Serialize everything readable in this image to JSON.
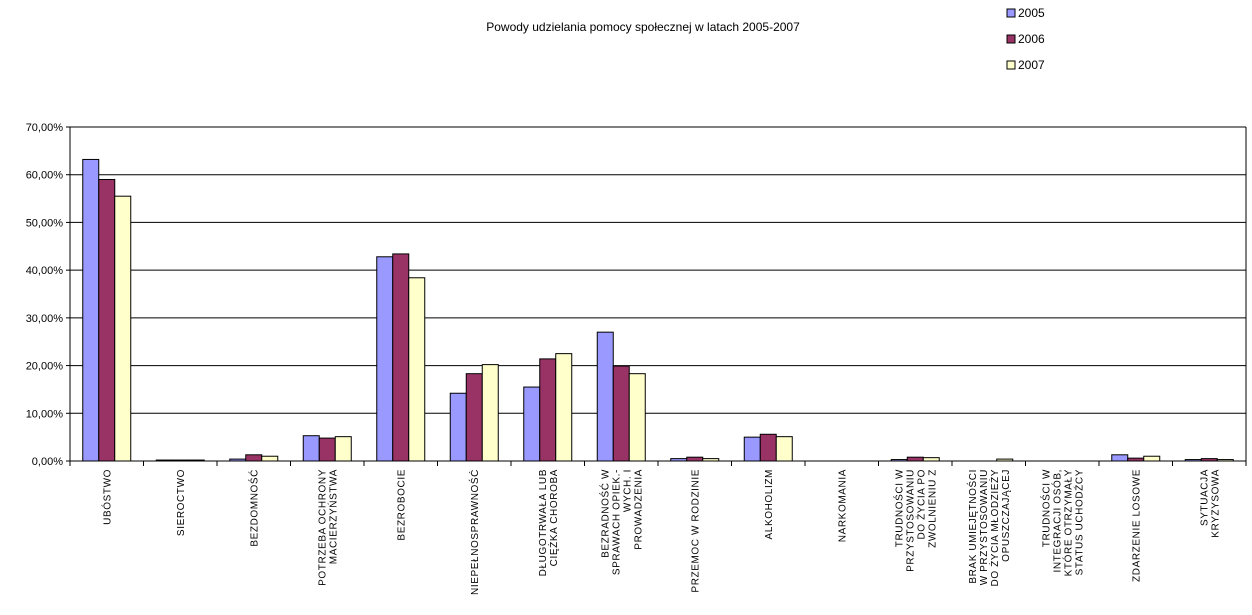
{
  "chart_data": {
    "type": "bar",
    "title": "Powody udzielania pomocy społecznej w latach 2005-2007",
    "xlabel": "",
    "ylabel": "",
    "ylim": [
      0,
      70
    ],
    "yticks": [
      "0,00%",
      "10,00%",
      "20,00%",
      "30,00%",
      "40,00%",
      "50,00%",
      "60,00%",
      "70,00%"
    ],
    "grid": true,
    "legend_position": "top-right",
    "categories": [
      [
        "UBÓSTWO"
      ],
      [
        "SIEROCTWO"
      ],
      [
        "BEZDOMNOŚĆ"
      ],
      [
        "POTRZEBA OCHRONY",
        "MACIERZYŃSTWA"
      ],
      [
        "BEZROBOCIE"
      ],
      [
        "NIEPEŁNOSPRAWNOŚĆ"
      ],
      [
        "DŁUGOTRWAŁA LUB",
        "CIĘŻKA CHOROBA"
      ],
      [
        "BEZRADNOŚĆ W",
        "SPRAWACH OPIEK.-",
        "WYCH. I",
        "PROWADZENIA"
      ],
      [
        "PRZEMOC W RODZINIE"
      ],
      [
        "ALKOHOLIZM"
      ],
      [
        "NARKOMANIA"
      ],
      [
        "TRUDNOŚCI W",
        "PRZYSTOSOWANIU",
        "DO ŻYCIA PO",
        "ZWOLNIENIU Z"
      ],
      [
        "BRAK UMIEJĘTNOŚCI",
        "W PRZYSTOSOWANIU",
        "DO ŻYCIA MŁODZIEŻY",
        "OPUSZCZAJĄCEJ"
      ],
      [
        "TRUDNOŚCI W",
        "INTEGRACJI OSÓB,",
        "KTÓRE OTRZYMAŁY",
        "STATUS UCHODŹCY"
      ],
      [
        "ZDARZENIE LOSOWE"
      ],
      [
        "SYTUACJA",
        "KRYZYSOWA"
      ]
    ],
    "series": [
      {
        "name": "2005",
        "color": "#9999ff",
        "values": [
          63.2,
          0.2,
          0.4,
          5.3,
          42.8,
          14.2,
          15.5,
          27.0,
          0.5,
          5.0,
          0.0,
          0.3,
          0.0,
          0.0,
          1.3,
          0.3
        ]
      },
      {
        "name": "2006",
        "color": "#993366",
        "values": [
          59.0,
          0.2,
          1.3,
          4.8,
          43.4,
          18.3,
          21.4,
          19.9,
          0.8,
          5.6,
          0.0,
          0.8,
          0.0,
          0.0,
          0.6,
          0.5
        ]
      },
      {
        "name": "2007",
        "color": "#ffffcc",
        "values": [
          55.5,
          0.2,
          1.0,
          5.1,
          38.4,
          20.2,
          22.5,
          18.3,
          0.5,
          5.1,
          0.0,
          0.7,
          0.4,
          0.0,
          1.0,
          0.3
        ]
      }
    ]
  }
}
